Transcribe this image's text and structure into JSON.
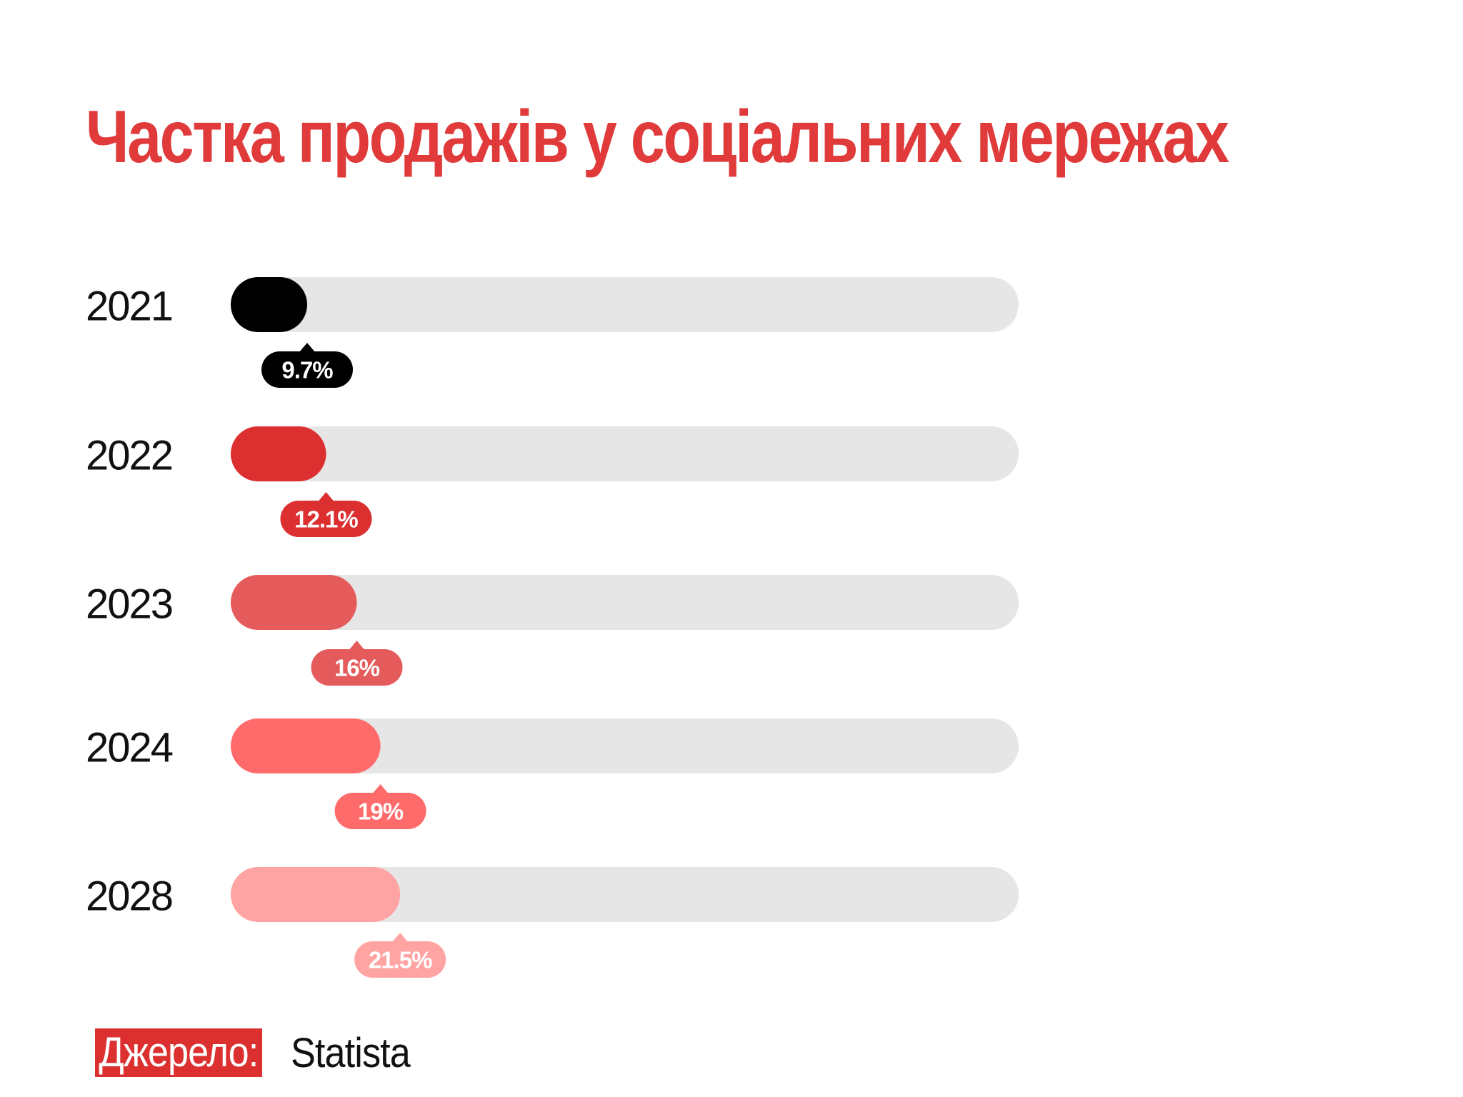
{
  "chart_data": {
    "type": "bar",
    "orientation": "horizontal",
    "title": "Частка продажів у соціальних мережах",
    "categories": [
      "2021",
      "2022",
      "2023",
      "2024",
      "2028"
    ],
    "values": [
      9.7,
      12.1,
      16,
      19,
      21.5
    ],
    "value_labels": [
      "9.7%",
      "12.1%",
      "16%",
      "19%",
      "21.5%"
    ],
    "unit": "%",
    "xlim": [
      0,
      100
    ],
    "grid": false,
    "legend": "none",
    "colors": [
      "#000000",
      "#dc2f2f",
      "#e55a5a",
      "#ff6b6b",
      "#ffa3a3"
    ],
    "track_color": "#e6e6e6"
  },
  "source": {
    "label": "Джерело:",
    "value": "Statista"
  }
}
